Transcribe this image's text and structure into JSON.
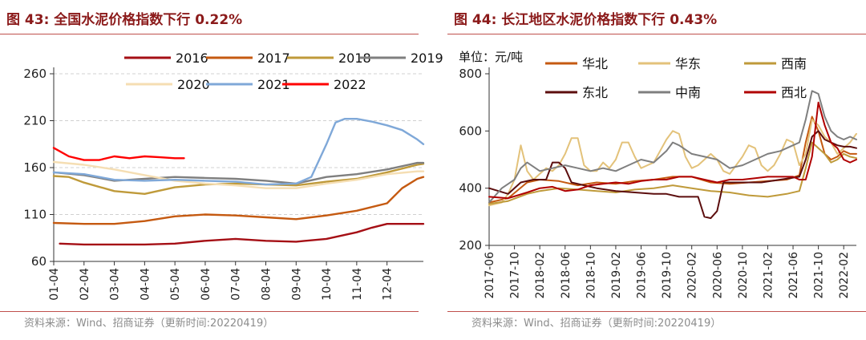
{
  "left": {
    "title": "图 43:  全国水泥价格指数下行 0.22%",
    "source": "资料来源：Wind、招商证券（更新时间:20220419）"
  },
  "right": {
    "title": "图 44:  长江地区水泥价格指数下行 0.43%",
    "source": "资料来源：Wind、招商证券（更新时间:20220419）"
  },
  "chart_data": [
    {
      "type": "line",
      "title": "全国水泥价格指数下行 0.22%",
      "xlabel": "",
      "ylabel": "",
      "ylim": [
        60,
        260
      ],
      "yticks": [
        60,
        110,
        160,
        210,
        260
      ],
      "xlim": [
        0,
        12.2
      ],
      "x_tick_positions": [
        0,
        1,
        2,
        3,
        4,
        5,
        6,
        7,
        8,
        9,
        10,
        11
      ],
      "x_tick_labels": [
        "01-04",
        "02-04",
        "03-04",
        "04-04",
        "05-04",
        "06-04",
        "07-04",
        "08-04",
        "09-04",
        "10-04",
        "11-04",
        "12-04"
      ],
      "grid": "horizontal dashed",
      "series": [
        {
          "name": "2016",
          "color": "#a50f15",
          "x": [
            0.2,
            1,
            2,
            3,
            4,
            5,
            6,
            7,
            8,
            9,
            10,
            10.5,
            11,
            12.2
          ],
          "values": [
            79,
            78,
            78,
            78,
            79,
            82,
            84,
            82,
            81,
            84,
            91,
            96,
            100,
            100
          ]
        },
        {
          "name": "2017",
          "color": "#c55a11",
          "x": [
            0,
            1,
            2,
            3,
            4,
            5,
            6,
            7,
            8,
            9,
            10,
            11,
            11.5,
            12,
            12.2
          ],
          "values": [
            101,
            100,
            100,
            103,
            108,
            110,
            109,
            107,
            105,
            109,
            114,
            122,
            138,
            148,
            150
          ]
        },
        {
          "name": "2018",
          "color": "#bf9a3a",
          "x": [
            0,
            0.5,
            1,
            2,
            3,
            4,
            5,
            6,
            7,
            8,
            9,
            10,
            11,
            12,
            12.2
          ],
          "values": [
            151,
            150,
            144,
            135,
            132,
            139,
            142,
            143,
            142,
            141,
            145,
            148,
            155,
            163,
            164
          ]
        },
        {
          "name": "2019",
          "color": "#7f7f7f",
          "x": [
            0,
            1,
            2,
            3,
            4,
            5,
            6,
            7,
            8,
            9,
            10,
            11,
            12,
            12.2
          ],
          "values": [
            155,
            152,
            146,
            148,
            150,
            149,
            148,
            146,
            143,
            150,
            153,
            158,
            165,
            165
          ]
        },
        {
          "name": "2020",
          "color": "#f5deb3",
          "x": [
            0,
            1,
            2,
            3,
            4,
            5,
            6,
            7,
            8,
            9,
            10,
            11,
            12,
            12.2
          ],
          "values": [
            166,
            163,
            158,
            152,
            146,
            143,
            141,
            138,
            138,
            143,
            147,
            153,
            156,
            156
          ]
        },
        {
          "name": "2021",
          "color": "#7fa8d8",
          "x": [
            0,
            1,
            2,
            3,
            4,
            5,
            6,
            7,
            8,
            8.5,
            9,
            9.3,
            9.6,
            10,
            10.5,
            11,
            11.5,
            12,
            12.2
          ],
          "values": [
            155,
            153,
            147,
            146,
            147,
            146,
            145,
            142,
            143,
            150,
            185,
            208,
            212,
            212,
            209,
            205,
            200,
            190,
            185
          ]
        },
        {
          "name": "2022",
          "color": "#ff0000",
          "x": [
            0,
            0.5,
            1,
            1.5,
            2,
            2.5,
            3,
            3.5,
            4,
            4.3
          ],
          "values": [
            181,
            172,
            168,
            168,
            172,
            170,
            172,
            171,
            170,
            170
          ]
        }
      ]
    },
    {
      "type": "line",
      "title": "长江地区水泥价格指数下行 0.43%",
      "unit": "单位：元/吨",
      "xlabel": "",
      "ylabel": "单位：元/吨",
      "ylim": [
        200,
        800
      ],
      "yticks": [
        200,
        400,
        600,
        800
      ],
      "xlim": [
        0,
        58
      ],
      "x_tick_positions": [
        0,
        4,
        8,
        12,
        16,
        20,
        24,
        28,
        32,
        36,
        40,
        44,
        48,
        52,
        56
      ],
      "x_tick_labels": [
        "2017-06",
        "2017-10",
        "2018-02",
        "2018-06",
        "2018-10",
        "2019-02",
        "2019-06",
        "2019-10",
        "2020-02",
        "2020-06",
        "2020-10",
        "2021-02",
        "2021-06",
        "2021-10",
        "2022-02"
      ],
      "grid": "none",
      "series": [
        {
          "name": "华北",
          "color": "#c55a11",
          "x": [
            0,
            3,
            6,
            8,
            11,
            14,
            17,
            20,
            23,
            26,
            29,
            32,
            35,
            38,
            41,
            44,
            47,
            49,
            50,
            51,
            52,
            53,
            54,
            55,
            56,
            57,
            58
          ],
          "values": [
            350,
            365,
            420,
            430,
            425,
            410,
            420,
            415,
            425,
            430,
            440,
            440,
            420,
            415,
            420,
            425,
            430,
            445,
            560,
            650,
            600,
            520,
            500,
            510,
            530,
            520,
            520
          ]
        },
        {
          "name": "华东",
          "color": "#e3c27a",
          "x": [
            0,
            2,
            3,
            4,
            5,
            6,
            7,
            8,
            9,
            10,
            11,
            12,
            13,
            14,
            15,
            16,
            17,
            18,
            19,
            20,
            21,
            22,
            23,
            24,
            25,
            26,
            27,
            28,
            29,
            30,
            31,
            32,
            33,
            34,
            35,
            36,
            37,
            38,
            39,
            40,
            41,
            42,
            43,
            44,
            45,
            46,
            47,
            48,
            49,
            50,
            51,
            52,
            53,
            54,
            55,
            56,
            57,
            58
          ],
          "values": [
            340,
            350,
            380,
            430,
            550,
            460,
            430,
            450,
            470,
            460,
            480,
            520,
            575,
            575,
            480,
            460,
            460,
            490,
            470,
            500,
            560,
            560,
            510,
            470,
            480,
            490,
            530,
            570,
            600,
            590,
            510,
            470,
            480,
            500,
            520,
            500,
            460,
            450,
            480,
            510,
            550,
            540,
            480,
            460,
            480,
            520,
            570,
            560,
            480,
            520,
            640,
            620,
            580,
            560,
            520,
            540,
            560,
            590
          ]
        },
        {
          "name": "西南",
          "color": "#bf9a3a",
          "x": [
            0,
            3,
            6,
            8,
            11,
            14,
            17,
            20,
            23,
            26,
            29,
            32,
            35,
            38,
            41,
            44,
            47,
            49,
            50,
            51,
            52,
            53,
            54,
            55,
            56,
            57,
            58
          ],
          "values": [
            345,
            355,
            380,
            390,
            400,
            395,
            390,
            385,
            395,
            400,
            410,
            400,
            390,
            385,
            375,
            370,
            380,
            390,
            470,
            560,
            540,
            520,
            490,
            500,
            520,
            510,
            505
          ]
        },
        {
          "name": "东北",
          "color": "#5c0e0e",
          "x": [
            0,
            3,
            5,
            7,
            9,
            10,
            11,
            12,
            13,
            15,
            17,
            20,
            23,
            26,
            28,
            30,
            32,
            33,
            34,
            35,
            36,
            37,
            40,
            43,
            46,
            49,
            50,
            51,
            52,
            53,
            54,
            55,
            56,
            57,
            58
          ],
          "values": [
            400,
            380,
            420,
            430,
            430,
            490,
            490,
            470,
            420,
            410,
            400,
            390,
            385,
            380,
            380,
            370,
            370,
            370,
            300,
            295,
            320,
            420,
            420,
            420,
            430,
            440,
            500,
            580,
            600,
            570,
            560,
            550,
            545,
            545,
            540
          ]
        },
        {
          "name": "中南",
          "color": "#7f7f7f",
          "x": [
            0,
            2,
            4,
            5,
            6,
            8,
            10,
            12,
            14,
            16,
            18,
            20,
            22,
            24,
            26,
            28,
            29,
            30,
            32,
            34,
            36,
            38,
            40,
            42,
            44,
            46,
            48,
            49,
            50,
            51,
            52,
            53,
            54,
            55,
            56,
            57,
            58
          ],
          "values": [
            350,
            400,
            430,
            470,
            490,
            460,
            470,
            480,
            470,
            460,
            470,
            460,
            480,
            500,
            490,
            530,
            560,
            550,
            520,
            510,
            500,
            470,
            480,
            500,
            520,
            530,
            550,
            560,
            640,
            740,
            730,
            650,
            600,
            580,
            570,
            580,
            570
          ]
        },
        {
          "name": "西北",
          "color": "#b00000",
          "x": [
            0,
            3,
            6,
            8,
            10,
            12,
            14,
            16,
            18,
            20,
            22,
            24,
            26,
            28,
            30,
            32,
            34,
            36,
            38,
            40,
            42,
            44,
            46,
            48,
            49,
            50,
            51,
            52,
            53,
            54,
            55,
            56,
            57,
            58
          ],
          "values": [
            370,
            365,
            385,
            400,
            405,
            390,
            395,
            410,
            415,
            420,
            415,
            425,
            430,
            430,
            440,
            440,
            430,
            420,
            430,
            430,
            435,
            440,
            440,
            440,
            430,
            430,
            510,
            700,
            620,
            560,
            540,
            500,
            490,
            500
          ]
        }
      ]
    }
  ]
}
